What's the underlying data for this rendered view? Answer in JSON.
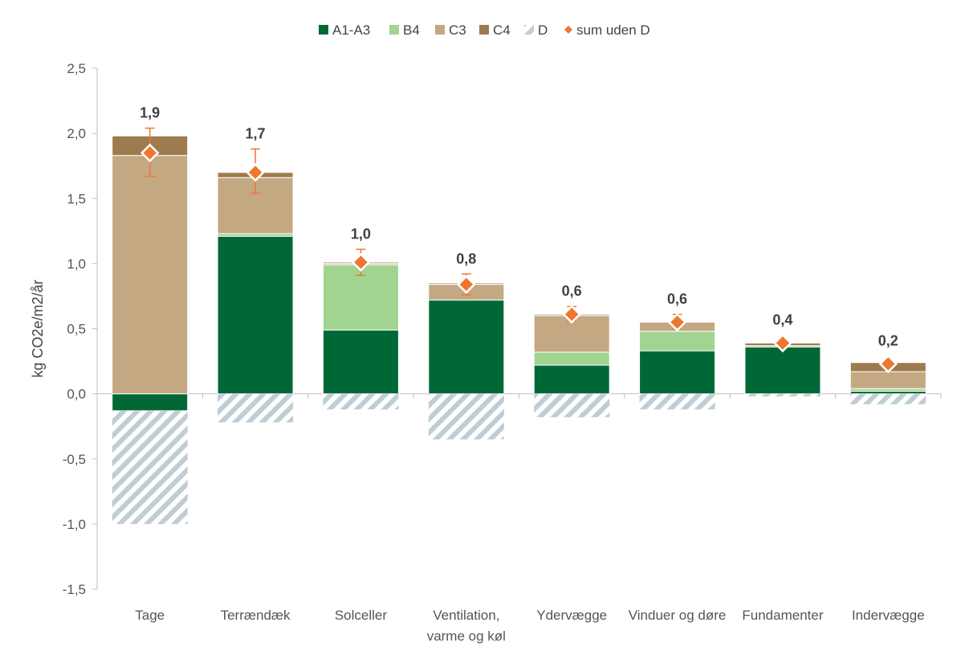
{
  "chart_data": {
    "type": "bar",
    "stacked": true,
    "title": "",
    "xlabel": "",
    "ylabel": "kg CO2e/m2/år",
    "ylim": [
      -1.5,
      2.5
    ],
    "yticks": [
      {
        "value": 2.5,
        "label": "2,5"
      },
      {
        "value": 2.0,
        "label": "2,0"
      },
      {
        "value": 1.5,
        "label": "1,5"
      },
      {
        "value": 1.0,
        "label": "1,0"
      },
      {
        "value": 0.5,
        "label": "0,5"
      },
      {
        "value": 0.0,
        "label": "0,0"
      },
      {
        "value": -0.5,
        "label": "-0,5"
      },
      {
        "value": -1.0,
        "label": "-1,0"
      },
      {
        "value": -1.5,
        "label": "-1,5"
      }
    ],
    "categories": [
      [
        "Tage"
      ],
      [
        "Terrændæk"
      ],
      [
        "Solceller"
      ],
      [
        "Ventilation,",
        "varme og køl"
      ],
      [
        "Ydervægge"
      ],
      [
        "Vinduer og døre"
      ],
      [
        "Fundamenter"
      ],
      [
        "Indervægge"
      ]
    ],
    "legend_position": "top",
    "series": [
      {
        "name": "A1-A3",
        "color": "#006837",
        "values": [
          -0.13,
          1.21,
          0.49,
          0.72,
          0.22,
          0.33,
          0.36,
          0.02
        ]
      },
      {
        "name": "B4",
        "color": "#a1d490",
        "values": [
          0.0,
          0.02,
          0.5,
          0.0,
          0.1,
          0.15,
          0.0,
          0.02
        ]
      },
      {
        "name": "C3",
        "color": "#c4a882",
        "values": [
          1.83,
          0.43,
          0.01,
          0.12,
          0.28,
          0.07,
          0.01,
          0.13
        ]
      },
      {
        "name": "C4",
        "color": "#9e7b4f",
        "values": [
          0.15,
          0.04,
          0.01,
          0.01,
          0.01,
          0.0,
          0.02,
          0.07
        ]
      },
      {
        "name": "D",
        "color": "#bfcdd4",
        "pattern": "hatched",
        "values": [
          -0.87,
          -0.22,
          -0.12,
          -0.35,
          -0.18,
          -0.12,
          -0.02,
          -0.08
        ]
      }
    ],
    "sum_series": {
      "name": "sum uden D",
      "color": "#ed7731",
      "values": [
        1.85,
        1.7,
        1.01,
        0.84,
        0.61,
        0.55,
        0.39,
        0.23
      ],
      "labels": [
        "1,9",
        "1,7",
        "1,0",
        "0,8",
        "0,6",
        "0,6",
        "0,4",
        "0,2"
      ],
      "error_high": [
        2.04,
        1.88,
        1.11,
        0.92,
        0.67,
        0.61,
        0.41,
        0.24
      ],
      "error_low": [
        1.67,
        1.54,
        0.91,
        0.76,
        0.56,
        0.5,
        0.37,
        0.22
      ]
    }
  }
}
